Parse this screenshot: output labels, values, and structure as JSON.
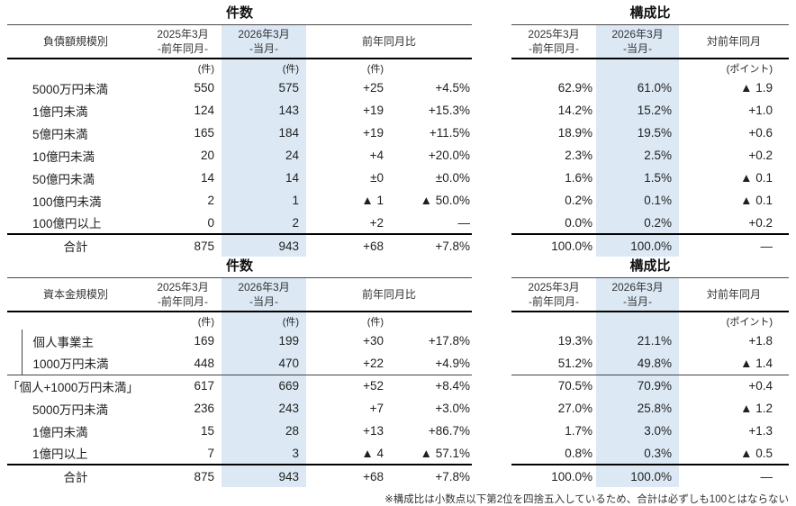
{
  "meta": {
    "footnote": "※構成比は小数点以下第2位を四捨五入しているため、合計は必ずしも100とはならない"
  },
  "colors": {
    "highlight": "#dce9f5",
    "thin_line": "#4a4a4a",
    "thick_line": "#000000"
  },
  "tables": {
    "debt_count": {
      "title": "件数",
      "header": {
        "category": "負債額規模別",
        "col_prev": "2025年3月",
        "col_prev_sub": "-前年同月-",
        "col_cur": "2026年3月",
        "col_cur_sub": "-当月-",
        "col_yoy": "前年同月比"
      },
      "units": {
        "prev": "(件)",
        "cur": "(件)",
        "yoy": "(件)"
      },
      "rows": [
        {
          "label": "5000万円未満",
          "prev": "550",
          "cur": "575",
          "diff": "+25",
          "pct": "+4.5%"
        },
        {
          "label": "1億円未満",
          "prev": "124",
          "cur": "143",
          "diff": "+19",
          "pct": "+15.3%"
        },
        {
          "label": "5億円未満",
          "prev": "165",
          "cur": "184",
          "diff": "+19",
          "pct": "+11.5%"
        },
        {
          "label": "10億円未満",
          "prev": "20",
          "cur": "24",
          "diff": "+4",
          "pct": "+20.0%"
        },
        {
          "label": "50億円未満",
          "prev": "14",
          "cur": "14",
          "diff": "±0",
          "pct": "±0.0%"
        },
        {
          "label": "100億円未満",
          "prev": "2",
          "cur": "1",
          "diff": "▲ 1",
          "pct": "▲ 50.0%"
        },
        {
          "label": "100億円以上",
          "prev": "0",
          "cur": "2",
          "diff": "+2",
          "pct": "—"
        }
      ],
      "total": {
        "label": "合計",
        "prev": "875",
        "cur": "943",
        "diff": "+68",
        "pct": "+7.8%"
      }
    },
    "debt_ratio": {
      "title": "構成比",
      "header": {
        "col_prev": "2025年3月",
        "col_prev_sub": "-前年同月-",
        "col_cur": "2026年3月",
        "col_cur_sub": "-当月-",
        "col_vs": "対前年同月"
      },
      "units": {
        "point": "(ポイント)"
      },
      "rows": [
        {
          "prev": "62.9%",
          "cur": "61.0%",
          "point": "▲ 1.9"
        },
        {
          "prev": "14.2%",
          "cur": "15.2%",
          "point": "+1.0"
        },
        {
          "prev": "18.9%",
          "cur": "19.5%",
          "point": "+0.6"
        },
        {
          "prev": "2.3%",
          "cur": "2.5%",
          "point": "+0.2"
        },
        {
          "prev": "1.6%",
          "cur": "1.5%",
          "point": "▲ 0.1"
        },
        {
          "prev": "0.2%",
          "cur": "0.1%",
          "point": "▲ 0.1"
        },
        {
          "prev": "0.0%",
          "cur": "0.2%",
          "point": "+0.2"
        }
      ],
      "total": {
        "prev": "100.0%",
        "cur": "100.0%",
        "point": "—"
      }
    },
    "capital_count": {
      "title": "件数",
      "header": {
        "category": "資本金規模別",
        "col_prev": "2025年3月",
        "col_prev_sub": "-前年同月-",
        "col_cur": "2026年3月",
        "col_cur_sub": "-当月-",
        "col_yoy": "前年同月比"
      },
      "units": {
        "prev": "(件)",
        "cur": "(件)",
        "yoy": "(件)"
      },
      "rows": [
        {
          "label": "個人事業主",
          "indent": "bracket",
          "prev": "169",
          "cur": "199",
          "diff": "+30",
          "pct": "+17.8%"
        },
        {
          "label": "1000万円未満",
          "indent": "bracket",
          "sep_below": true,
          "prev": "448",
          "cur": "470",
          "diff": "+22",
          "pct": "+4.9%"
        },
        {
          "label": "「個人+1000万円未満」",
          "indent": "none",
          "prev": "617",
          "cur": "669",
          "diff": "+52",
          "pct": "+8.4%"
        },
        {
          "label": "5000万円未満",
          "prev": "236",
          "cur": "243",
          "diff": "+7",
          "pct": "+3.0%"
        },
        {
          "label": "1億円未満",
          "prev": "15",
          "cur": "28",
          "diff": "+13",
          "pct": "+86.7%"
        },
        {
          "label": "1億円以上",
          "prev": "7",
          "cur": "3",
          "diff": "▲ 4",
          "pct": "▲ 57.1%"
        }
      ],
      "total": {
        "label": "合計",
        "prev": "875",
        "cur": "943",
        "diff": "+68",
        "pct": "+7.8%"
      }
    },
    "capital_ratio": {
      "title": "構成比",
      "header": {
        "col_prev": "2025年3月",
        "col_prev_sub": "-前年同月-",
        "col_cur": "2026年3月",
        "col_cur_sub": "-当月-",
        "col_vs": "対前年同月"
      },
      "units": {
        "point": "(ポイント)"
      },
      "rows": [
        {
          "prev": "19.3%",
          "cur": "21.1%",
          "point": "+1.8"
        },
        {
          "prev": "51.2%",
          "cur": "49.8%",
          "point": "▲ 1.4",
          "sep_below": true
        },
        {
          "prev": "70.5%",
          "cur": "70.9%",
          "point": "+0.4"
        },
        {
          "prev": "27.0%",
          "cur": "25.8%",
          "point": "▲ 1.2"
        },
        {
          "prev": "1.7%",
          "cur": "3.0%",
          "point": "+1.3"
        },
        {
          "prev": "0.8%",
          "cur": "0.3%",
          "point": "▲ 0.5"
        }
      ],
      "total": {
        "prev": "100.0%",
        "cur": "100.0%",
        "point": "—"
      }
    }
  }
}
